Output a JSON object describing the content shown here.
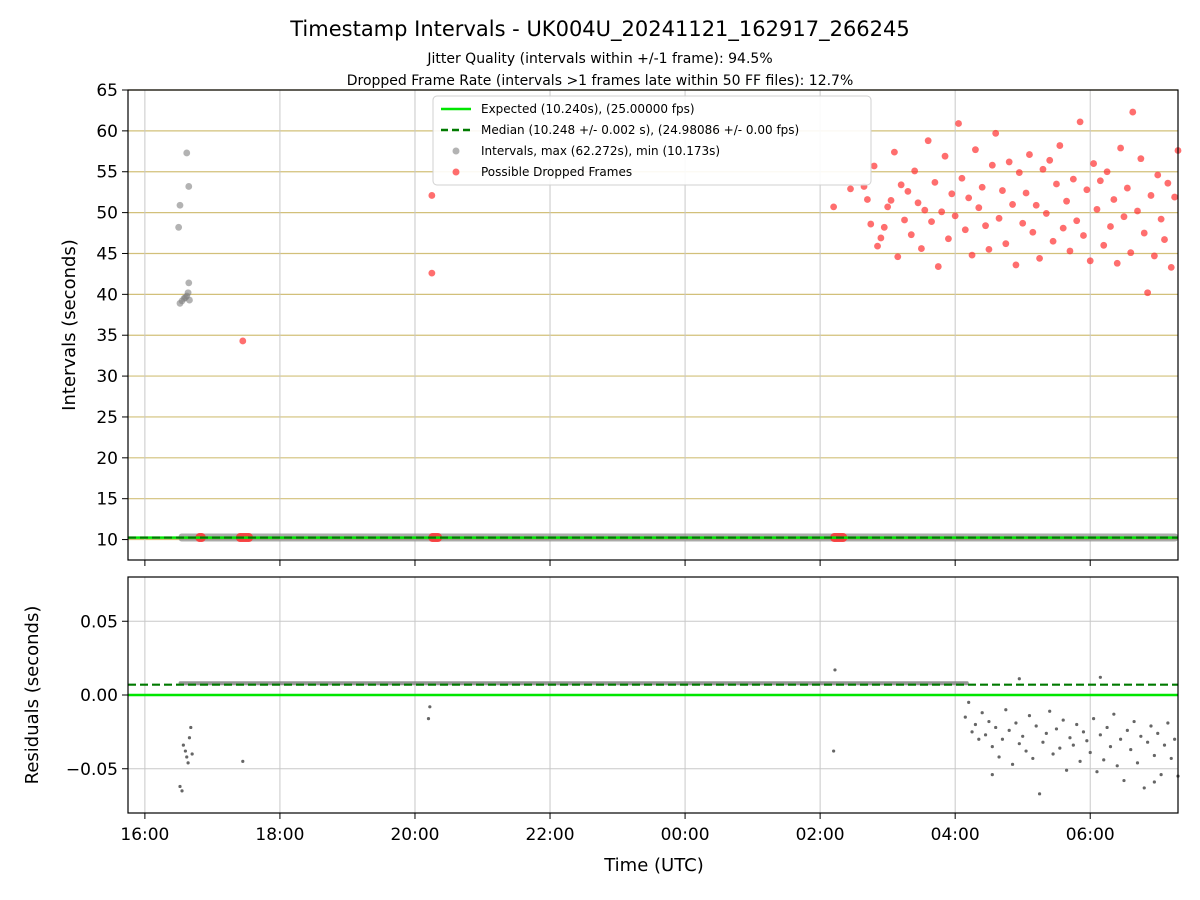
{
  "chart_data": {
    "type": "scatter",
    "title": "Timestamp Intervals - UK004U_20241121_162917_266245",
    "subtitle_lines": [
      "Jitter Quality (intervals within +/-1 frame): 94.5%",
      "Dropped Frame Rate (intervals >1 frames late within 50 FF files): 12.7%"
    ],
    "xlabel": "Time (UTC)",
    "x_ticks": [
      "16:00",
      "18:00",
      "20:00",
      "22:00",
      "00:00",
      "02:00",
      "04:00",
      "06:00"
    ],
    "x_range_hours": [
      15.75,
      31.3
    ],
    "top": {
      "ylabel": "Intervals (seconds)",
      "ylim": [
        7.5,
        65
      ],
      "y_ticks": [
        "10",
        "15",
        "20",
        "25",
        "30",
        "35",
        "40",
        "45",
        "50",
        "55",
        "60",
        "65"
      ],
      "legend": [
        "Expected (10.240s), (25.00000 fps)",
        "Median (10.248 +/- 0.002 s), (24.98086 +/- 0.00 fps)",
        "Intervals, max (62.272s), min (10.173s)",
        "Possible Dropped Frames"
      ],
      "legend_position": "top-center",
      "expected": 10.24,
      "median": 10.248,
      "interval_band": {
        "start": 16.5,
        "end": 31.3,
        "value": 10.25
      },
      "grey_points": [
        [
          16.5,
          48.2
        ],
        [
          16.52,
          50.9
        ],
        [
          16.62,
          57.3
        ],
        [
          16.65,
          53.2
        ],
        [
          16.65,
          41.4
        ],
        [
          16.52,
          38.9
        ],
        [
          16.55,
          39.2
        ],
        [
          16.58,
          39.5
        ],
        [
          16.6,
          39.6
        ],
        [
          16.62,
          39.8
        ],
        [
          16.64,
          40.2
        ],
        [
          16.66,
          39.3
        ]
      ],
      "red_points": [
        [
          17.45,
          34.3
        ],
        [
          20.25,
          52.1
        ],
        [
          20.25,
          42.6
        ],
        [
          26.2,
          50.7
        ],
        [
          30.63,
          62.3
        ],
        [
          30.85,
          40.2
        ],
        [
          26.45,
          52.9
        ],
        [
          26.65,
          53.2
        ],
        [
          26.7,
          51.6
        ],
        [
          26.75,
          48.6
        ],
        [
          26.8,
          55.7
        ],
        [
          26.85,
          45.9
        ],
        [
          26.9,
          46.9
        ],
        [
          26.95,
          48.2
        ],
        [
          27.0,
          50.7
        ],
        [
          27.05,
          51.5
        ],
        [
          27.1,
          57.4
        ],
        [
          27.15,
          44.6
        ],
        [
          27.2,
          53.4
        ],
        [
          27.25,
          49.1
        ],
        [
          27.3,
          52.6
        ],
        [
          27.35,
          47.3
        ],
        [
          27.4,
          55.1
        ],
        [
          27.45,
          51.2
        ],
        [
          27.5,
          45.6
        ],
        [
          27.55,
          50.3
        ],
        [
          27.6,
          58.8
        ],
        [
          27.65,
          48.9
        ],
        [
          27.7,
          53.7
        ],
        [
          27.75,
          43.4
        ],
        [
          27.8,
          50.1
        ],
        [
          27.85,
          56.9
        ],
        [
          27.9,
          46.8
        ],
        [
          27.95,
          52.3
        ],
        [
          28.0,
          49.6
        ],
        [
          28.05,
          60.9
        ],
        [
          28.1,
          54.2
        ],
        [
          28.15,
          47.9
        ],
        [
          28.2,
          51.8
        ],
        [
          28.25,
          44.8
        ],
        [
          28.3,
          57.7
        ],
        [
          28.35,
          50.6
        ],
        [
          28.4,
          53.1
        ],
        [
          28.45,
          48.4
        ],
        [
          28.5,
          45.5
        ],
        [
          28.55,
          55.8
        ],
        [
          28.6,
          59.7
        ],
        [
          28.65,
          49.3
        ],
        [
          28.7,
          52.7
        ],
        [
          28.75,
          46.2
        ],
        [
          28.8,
          56.2
        ],
        [
          28.85,
          51.0
        ],
        [
          28.9,
          43.6
        ],
        [
          28.95,
          54.9
        ],
        [
          29.0,
          48.7
        ],
        [
          29.05,
          52.4
        ],
        [
          29.1,
          57.1
        ],
        [
          29.15,
          47.6
        ],
        [
          29.2,
          50.9
        ],
        [
          29.25,
          44.4
        ],
        [
          29.3,
          55.3
        ],
        [
          29.35,
          49.9
        ],
        [
          29.4,
          56.4
        ],
        [
          29.45,
          46.5
        ],
        [
          29.5,
          53.5
        ],
        [
          29.55,
          58.2
        ],
        [
          29.6,
          48.1
        ],
        [
          29.65,
          51.4
        ],
        [
          29.7,
          45.3
        ],
        [
          29.75,
          54.1
        ],
        [
          29.8,
          49.0
        ],
        [
          29.85,
          61.1
        ],
        [
          29.9,
          47.2
        ],
        [
          29.95,
          52.8
        ],
        [
          30.0,
          44.1
        ],
        [
          30.05,
          56.0
        ],
        [
          30.1,
          50.4
        ],
        [
          30.15,
          53.9
        ],
        [
          30.2,
          46.0
        ],
        [
          30.25,
          55.0
        ],
        [
          30.3,
          48.3
        ],
        [
          30.35,
          51.6
        ],
        [
          30.4,
          43.8
        ],
        [
          30.45,
          57.9
        ],
        [
          30.5,
          49.5
        ],
        [
          30.55,
          53.0
        ],
        [
          30.6,
          45.1
        ],
        [
          30.7,
          50.2
        ],
        [
          30.75,
          56.6
        ],
        [
          30.8,
          47.5
        ],
        [
          30.9,
          52.1
        ],
        [
          30.95,
          44.7
        ],
        [
          31.0,
          54.6
        ],
        [
          31.05,
          49.2
        ],
        [
          31.1,
          46.7
        ],
        [
          31.15,
          53.6
        ],
        [
          31.2,
          43.3
        ],
        [
          31.25,
          51.9
        ],
        [
          31.3,
          57.6
        ]
      ],
      "red_baseline_clusters": [
        [
          16.75,
          16.9
        ],
        [
          17.35,
          17.6
        ],
        [
          20.2,
          20.4
        ],
        [
          26.15,
          26.4
        ]
      ]
    },
    "bottom": {
      "ylabel": "Residuals (seconds)",
      "ylim": [
        -0.08,
        0.08
      ],
      "y_ticks": [
        "0.05",
        "0.00",
        "−0.05"
      ],
      "expected": 0.0,
      "median": 0.007,
      "residual_band": {
        "start": 16.5,
        "end": 28.2,
        "value": 0.008
      },
      "residual_points": [
        [
          16.52,
          -0.062
        ],
        [
          16.55,
          -0.065
        ],
        [
          16.57,
          -0.034
        ],
        [
          16.6,
          -0.038
        ],
        [
          16.62,
          -0.042
        ],
        [
          16.64,
          -0.046
        ],
        [
          16.66,
          -0.029
        ],
        [
          16.68,
          -0.022
        ],
        [
          16.7,
          -0.04
        ],
        [
          17.45,
          -0.045
        ],
        [
          20.2,
          -0.016
        ],
        [
          20.22,
          -0.008
        ],
        [
          26.2,
          -0.038
        ],
        [
          26.22,
          0.017
        ],
        [
          28.15,
          -0.015
        ],
        [
          28.2,
          -0.005
        ],
        [
          28.25,
          -0.025
        ],
        [
          28.3,
          -0.02
        ],
        [
          28.35,
          -0.03
        ],
        [
          28.4,
          -0.012
        ],
        [
          28.45,
          -0.027
        ],
        [
          28.5,
          -0.018
        ],
        [
          28.55,
          -0.035
        ],
        [
          28.6,
          -0.022
        ],
        [
          28.65,
          -0.042
        ],
        [
          28.7,
          -0.03
        ],
        [
          28.75,
          -0.01
        ],
        [
          28.8,
          -0.024
        ],
        [
          28.85,
          -0.047
        ],
        [
          28.9,
          -0.019
        ],
        [
          28.95,
          -0.033
        ],
        [
          29.0,
          -0.028
        ],
        [
          29.05,
          -0.038
        ],
        [
          29.1,
          -0.014
        ],
        [
          29.15,
          -0.043
        ],
        [
          29.2,
          -0.021
        ],
        [
          29.25,
          -0.067
        ],
        [
          29.3,
          -0.032
        ],
        [
          29.35,
          -0.026
        ],
        [
          29.4,
          -0.011
        ],
        [
          29.45,
          -0.04
        ],
        [
          29.5,
          -0.023
        ],
        [
          29.55,
          -0.036
        ],
        [
          29.6,
          -0.017
        ],
        [
          29.65,
          -0.051
        ],
        [
          29.7,
          -0.029
        ],
        [
          29.75,
          -0.034
        ],
        [
          29.8,
          -0.02
        ],
        [
          29.85,
          -0.045
        ],
        [
          29.9,
          -0.025
        ],
        [
          29.95,
          -0.031
        ],
        [
          30.0,
          -0.039
        ],
        [
          30.05,
          -0.016
        ],
        [
          30.1,
          -0.052
        ],
        [
          30.15,
          -0.027
        ],
        [
          30.2,
          -0.044
        ],
        [
          30.25,
          -0.022
        ],
        [
          30.3,
          -0.035
        ],
        [
          30.35,
          -0.013
        ],
        [
          30.4,
          -0.048
        ],
        [
          30.45,
          -0.03
        ],
        [
          30.5,
          -0.058
        ],
        [
          30.55,
          -0.024
        ],
        [
          30.6,
          -0.037
        ],
        [
          30.65,
          -0.018
        ],
        [
          30.7,
          -0.046
        ],
        [
          30.75,
          -0.028
        ],
        [
          30.8,
          -0.063
        ],
        [
          30.85,
          -0.032
        ],
        [
          30.9,
          -0.021
        ],
        [
          30.95,
          -0.041
        ],
        [
          31.0,
          -0.026
        ],
        [
          31.05,
          -0.054
        ],
        [
          31.1,
          -0.034
        ],
        [
          31.15,
          -0.019
        ],
        [
          31.2,
          -0.043
        ],
        [
          31.25,
          -0.03
        ],
        [
          31.3,
          -0.055
        ],
        [
          28.95,
          0.011
        ],
        [
          30.15,
          0.012
        ],
        [
          28.55,
          -0.054
        ],
        [
          30.95,
          -0.059
        ]
      ]
    },
    "grid": true
  },
  "colors": {
    "expected": "#00e600",
    "median": "#007a00",
    "grey_point": "#808080",
    "red_point": "#ff3030",
    "top_hgrid": "#d2c07a",
    "vgrid": "#c8c8c8",
    "bottom_hgrid": "#c8c8c8"
  }
}
